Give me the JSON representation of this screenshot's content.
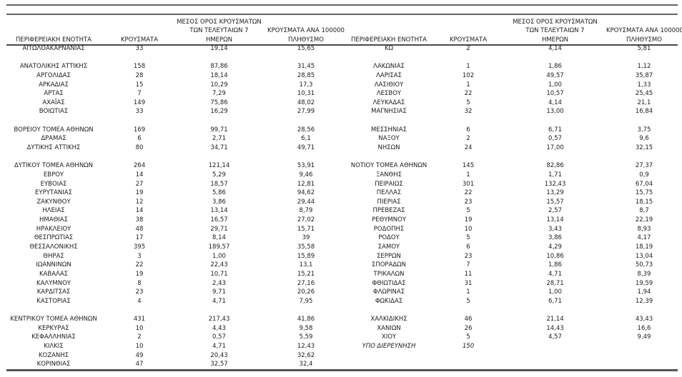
{
  "table": {
    "headers": {
      "left": {
        "region": "ΠΕΡΙΦΕΡΕΙΑΚΗ ΕΝΟΤΗΤΑ",
        "cases": "ΚΡΟΥΣΜΑΤΑ",
        "avg7_lines": [
          "ΜΕΣΟΣ ΟΡΟΣ ΚΡΟΥΣΜΑΤΩΝ",
          "ΤΩΝ ΤΕΛΕΥΤΑΙΩΝ 7",
          "ΗΜΕΡΩΝ"
        ],
        "per100k_lines": [
          "ΚΡΟΥΣΜΑΤΑ ΑΝΑ 100000",
          "ΠΛΗΘΥΣΜΟ"
        ]
      },
      "right": {
        "region": "ΠΕΡΙΦΕΡΕΙΑΚΗ ΕΝΟΤΗΤΑ",
        "cases": "ΚΡΟΥΣΜΑΤΑ",
        "avg7_lines": [
          "ΜΕΣΟΣ ΟΡΟΣ ΚΡΟΥΣΜΑΤΩΝ",
          "ΤΩΝ ΤΕΛΕΥΤΑΙΩΝ 7",
          "ΗΜΕΡΩΝ"
        ],
        "per100k_lines": [
          "ΚΡΟΥΣΜΑΤΑ ΑΝΑ 100000",
          "ΠΛΗΘΥΣΜΟ"
        ]
      }
    },
    "italic_row_index": 33,
    "rows": [
      [
        "ΑΙΤΩΛΟΑΚΑΡΝΑΝΙΑΣ",
        "33",
        "19,14",
        "15,65",
        "ΚΩ",
        "2",
        "4,14",
        "5,81"
      ],
      [
        "",
        "",
        "",
        "",
        "",
        "",
        "",
        ""
      ],
      [
        "ΑΝΑΤΟΛΙΚΗΣ ΑΤΤΙΚΗΣ",
        "158",
        "87,86",
        "31,45",
        "ΛΑΚΩΝΙΑΣ",
        "1",
        "1,86",
        "1,12"
      ],
      [
        "ΑΡΓΟΛΙΔΑΣ",
        "28",
        "18,14",
        "28,85",
        "ΛΑΡΙΣΑΣ",
        "102",
        "49,57",
        "35,87"
      ],
      [
        "ΑΡΚΑΔΙΑΣ",
        "15",
        "10,29",
        "17,3",
        "ΛΑΣΙΘΙΟΥ",
        "1",
        "1,00",
        "1,33"
      ],
      [
        "ΑΡΤΑΣ",
        "7",
        "7,29",
        "10,31",
        "ΛΕΣΒΟΥ",
        "22",
        "10,57",
        "25,45"
      ],
      [
        "ΑΧΑΪΑΣ",
        "149",
        "75,86",
        "48,02",
        "ΛΕΥΚΑΔΑΣ",
        "5",
        "4,14",
        "21,1"
      ],
      [
        "ΒΟΙΩΤΙΑΣ",
        "33",
        "16,29",
        "27,99",
        "ΜΑΓΝΗΣΙΑΣ",
        "32",
        "13,00",
        "16,84"
      ],
      [
        "",
        "",
        "",
        "",
        "",
        "",
        "",
        ""
      ],
      [
        "ΒΟΡΕΙΟΥ ΤΟΜΕΑ ΑΘΗΝΩΝ",
        "169",
        "99,71",
        "28,56",
        "ΜΕΣΣΗΝΙΑΣ",
        "6",
        "6,71",
        "3,75"
      ],
      [
        "ΔΡΑΜΑΣ",
        "6",
        "2,71",
        "6,1",
        "ΝΑΞΟΥ",
        "2",
        "0,57",
        "9,6"
      ],
      [
        "ΔΥΤΙΚΗΣ ΑΤΤΙΚΗΣ",
        "80",
        "34,71",
        "49,71",
        "ΝΗΣΩΝ",
        "24",
        "17,00",
        "32,15"
      ],
      [
        "",
        "",
        "",
        "",
        "",
        "",
        "",
        ""
      ],
      [
        "ΔΥΤΙΚΟΥ ΤΟΜΕΑ ΑΘΗΝΩΝ",
        "264",
        "121,14",
        "53,91",
        "ΝΟΤΙΟΥ ΤΟΜΕΑ ΑΘΗΝΩΝ",
        "145",
        "82,86",
        "27,37"
      ],
      [
        "ΕΒΡΟΥ",
        "14",
        "5,29",
        "9,46",
        "ΞΑΝΘΗΣ",
        "1",
        "1,71",
        "0,9"
      ],
      [
        "ΕΥΒΟΙΑΣ",
        "27",
        "18,57",
        "12,81",
        "ΠΕΙΡΑΙΩΣ",
        "301",
        "132,43",
        "67,04"
      ],
      [
        "ΕΥΡΥΤΑΝΙΑΣ",
        "19",
        "5,86",
        "94,62",
        "ΠΕΛΛΑΣ",
        "22",
        "13,29",
        "15,75"
      ],
      [
        "ΖΑΚΥΝΘΟΥ",
        "12",
        "3,86",
        "29,44",
        "ΠΙΕΡΙΑΣ",
        "23",
        "15,57",
        "18,15"
      ],
      [
        "ΗΛΕΙΑΣ",
        "14",
        "13,14",
        "8,79",
        "ΠΡΕΒΕΖΑΣ",
        "5",
        "2,57",
        "8,7"
      ],
      [
        "ΗΜΑΘΙΑΣ",
        "38",
        "16,57",
        "27,02",
        "ΡΕΘΥΜΝΟΥ",
        "19",
        "13,14",
        "22,19"
      ],
      [
        "ΗΡΑΚΛΕΙΟΥ",
        "48",
        "29,71",
        "15,71",
        "ΡΟΔΟΠΗΣ",
        "10",
        "3,43",
        "8,93"
      ],
      [
        "ΘΕΣΠΡΩΤΙΑΣ",
        "17",
        "8,14",
        "39",
        "ΡΟΔΟΥ",
        "5",
        "3,86",
        "4,17"
      ],
      [
        "ΘΕΣΣΑΛΟΝΙΚΗΣ",
        "395",
        "189,57",
        "35,58",
        "ΣΑΜΟΥ",
        "6",
        "4,29",
        "18,19"
      ],
      [
        "ΘΗΡΑΣ",
        "3",
        "1,00",
        "15,89",
        "ΣΕΡΡΩΝ",
        "23",
        "10,86",
        "13,04"
      ],
      [
        "ΙΩΑΝΝΙΝΩΝ",
        "22",
        "22,43",
        "13,1",
        "ΣΠΟΡΑΔΩΝ",
        "7",
        "1,86",
        "50,73"
      ],
      [
        "ΚΑΒΑΛΑΣ",
        "19",
        "10,71",
        "15,21",
        "ΤΡΙΚΑΛΩΝ",
        "11",
        "4,71",
        "8,39"
      ],
      [
        "ΚΑΛΥΜΝΟΥ",
        "8",
        "2,43",
        "27,16",
        "ΦΘΙΩΤΙΔΑΣ",
        "31",
        "28,71",
        "19,59"
      ],
      [
        "ΚΑΡΔΙΤΣΑΣ",
        "23",
        "9,71",
        "20,26",
        "ΦΛΩΡΙΝΑΣ",
        "1",
        "1,00",
        "1,94"
      ],
      [
        "ΚΑΣΤΟΡΙΑΣ",
        "4",
        "4,71",
        "7,95",
        "ΦΩΚΙΔΑΣ",
        "5",
        "6,71",
        "12,39"
      ],
      [
        "",
        "",
        "",
        "",
        "",
        "",
        "",
        ""
      ],
      [
        "ΚΕΝΤΡΙΚΟΥ ΤΟΜΕΑ ΑΘΗΝΩΝ",
        "431",
        "217,43",
        "41,86",
        "ΧΑΛΚΙΔΙΚΗΣ",
        "46",
        "21,14",
        "43,43"
      ],
      [
        "ΚΕΡΚΥΡΑΣ",
        "10",
        "4,43",
        "9,58",
        "ΧΑΝΙΩΝ",
        "26",
        "14,43",
        "16,6"
      ],
      [
        "ΚΕΦΑΛΛΗΝΙΑΣ",
        "2",
        "0,57",
        "5,59",
        "ΧΙΟΥ",
        "5",
        "4,57",
        "9,49"
      ],
      [
        "ΚΙΛΚΙΣ",
        "10",
        "4,71",
        "12,43",
        "ΥΠΟ ΔΙΕΡΕΥΝΗΣΗ",
        "150",
        "",
        ""
      ],
      [
        "ΚΟΖΑΝΗΣ",
        "49",
        "20,43",
        "32,62",
        "",
        "",
        "",
        ""
      ],
      [
        "ΚΟΡΙΝΘΙΑΣ",
        "47",
        "32,57",
        "32,4",
        "",
        "",
        "",
        ""
      ]
    ]
  }
}
